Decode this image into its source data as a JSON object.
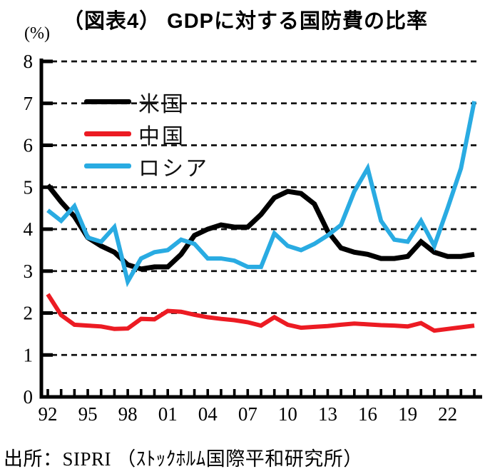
{
  "title": "（図表4） GDPに対する国防費の比率",
  "y_axis_unit": "(%)",
  "source": "出所：SIPRI （ｽﾄｯｸﾎﾙﾑ国際平和研究所）",
  "chart_data": {
    "type": "line",
    "title": "（図表4） GDPに対する国防費の比率",
    "xlabel": "",
    "ylabel": "(%)",
    "x": [
      1992,
      1993,
      1994,
      1995,
      1996,
      1997,
      1998,
      1999,
      2000,
      2001,
      2002,
      2003,
      2004,
      2005,
      2006,
      2007,
      2008,
      2009,
      2010,
      2011,
      2012,
      2013,
      2014,
      2015,
      2016,
      2017,
      2018,
      2019,
      2020,
      2021,
      2022,
      2023,
      2024
    ],
    "x_tick_label_years": [
      1992,
      1995,
      1998,
      2001,
      2004,
      2007,
      2010,
      2013,
      2016,
      2019,
      2022
    ],
    "x_tick_labels": [
      "92",
      "95",
      "98",
      "01",
      "04",
      "07",
      "10",
      "13",
      "16",
      "19",
      "22"
    ],
    "ylim": [
      0,
      8
    ],
    "y_ticks": [
      0,
      1,
      2,
      3,
      4,
      5,
      6,
      7,
      8
    ],
    "grid": "horizontal dashed",
    "legend_position": "upper-left inside plot",
    "series": [
      {
        "name": "米国",
        "color": "#000000",
        "values": [
          5.05,
          4.65,
          4.3,
          3.8,
          3.6,
          3.45,
          3.15,
          3.05,
          3.1,
          3.1,
          3.4,
          3.85,
          4.0,
          4.1,
          4.05,
          4.05,
          4.35,
          4.75,
          4.9,
          4.85,
          4.6,
          3.95,
          3.55,
          3.45,
          3.4,
          3.3,
          3.3,
          3.35,
          3.7,
          3.45,
          3.35,
          3.35,
          3.4
        ]
      },
      {
        "name": "中国",
        "color": "#ec1b23",
        "values": [
          2.45,
          1.95,
          1.72,
          1.7,
          1.68,
          1.62,
          1.63,
          1.86,
          1.85,
          2.05,
          2.03,
          1.96,
          1.9,
          1.86,
          1.83,
          1.78,
          1.7,
          1.9,
          1.72,
          1.65,
          1.67,
          1.69,
          1.72,
          1.75,
          1.73,
          1.71,
          1.7,
          1.68,
          1.76,
          1.58,
          1.62,
          1.66,
          1.7
        ]
      },
      {
        "name": "ロシア",
        "color": "#29abe2",
        "values": [
          4.45,
          4.2,
          4.55,
          3.8,
          3.7,
          4.05,
          2.75,
          3.3,
          3.45,
          3.5,
          3.75,
          3.65,
          3.3,
          3.3,
          3.25,
          3.1,
          3.1,
          3.9,
          3.6,
          3.5,
          3.65,
          3.85,
          4.1,
          4.9,
          5.45,
          4.2,
          3.75,
          3.7,
          4.2,
          3.6,
          4.5,
          5.45,
          7.05
        ]
      }
    ],
    "source": "出所：SIPRI （ｽﾄｯｸﾎﾙﾑ国際平和研究所）"
  }
}
